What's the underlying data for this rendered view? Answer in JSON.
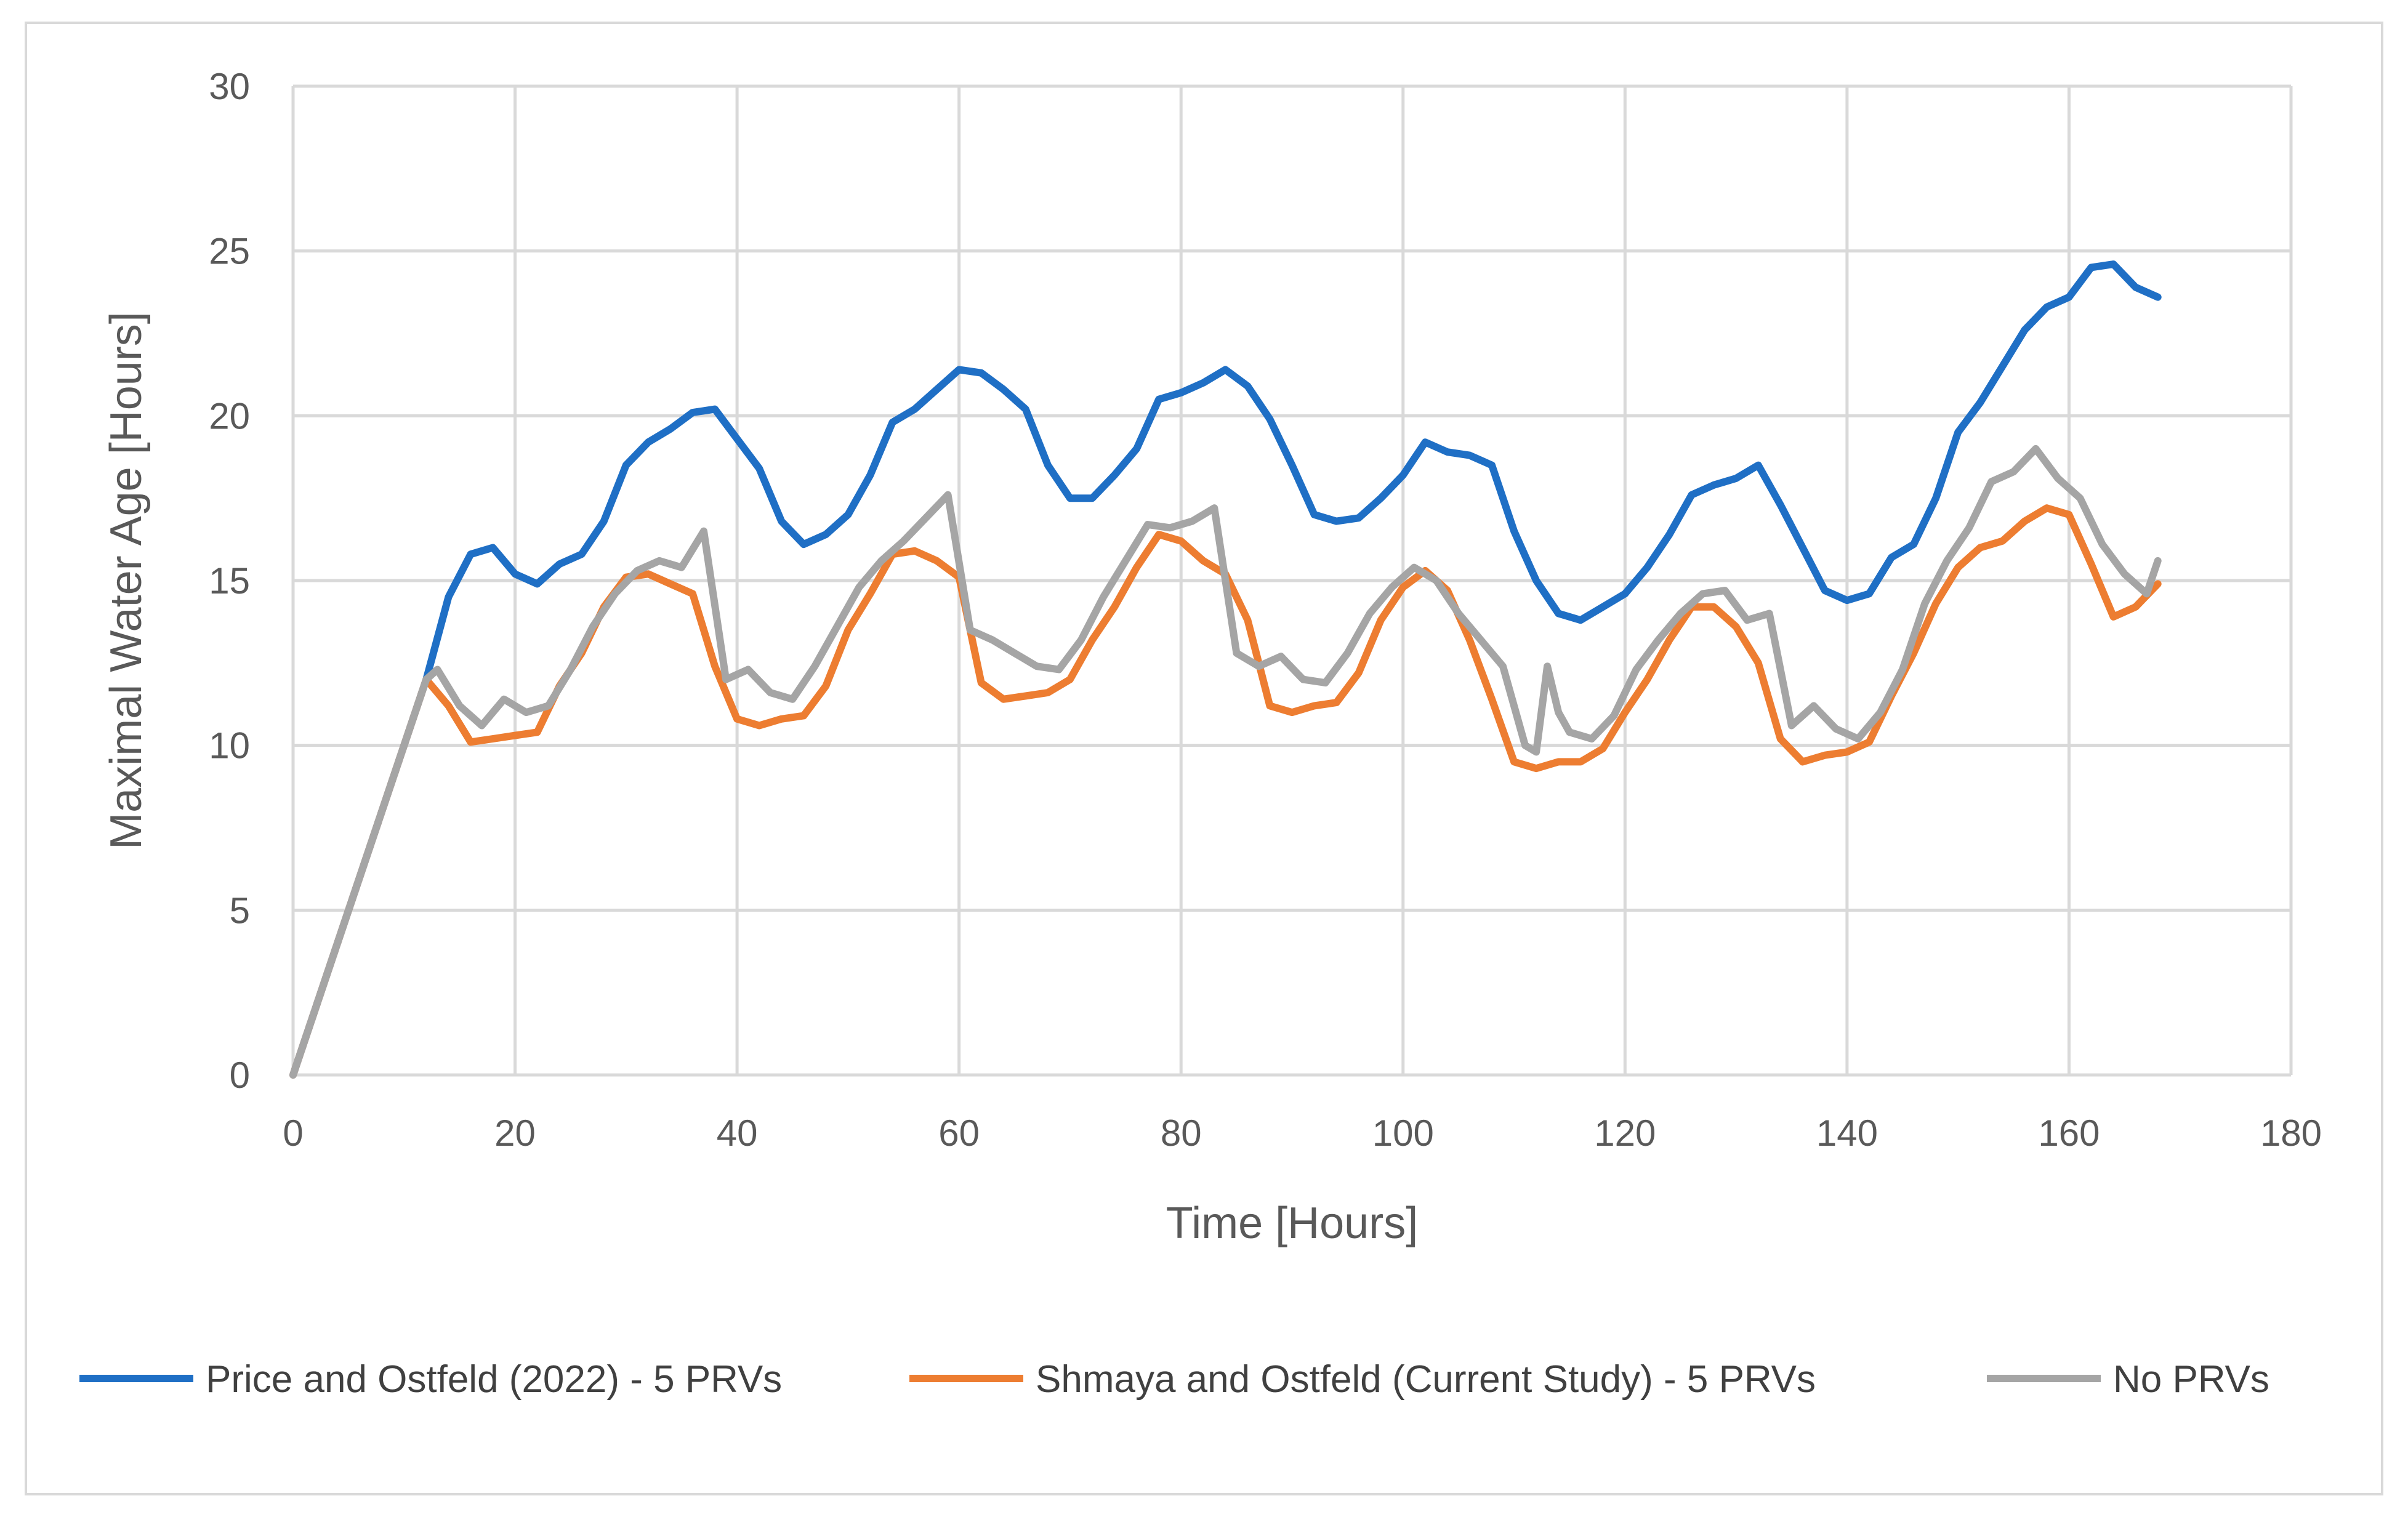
{
  "chart_data": {
    "type": "line",
    "title": "",
    "xlabel": "Time [Hours]",
    "ylabel": "Maximal Water Age [Hours]",
    "xlim": [
      0,
      180
    ],
    "ylim": [
      0,
      30
    ],
    "xticks": [
      0,
      20,
      40,
      60,
      80,
      100,
      120,
      140,
      160,
      180
    ],
    "yticks": [
      0,
      5,
      10,
      15,
      20,
      25,
      30
    ],
    "grid": true,
    "legend_position": "bottom",
    "series": [
      {
        "name": "Price and Ostfeld (2022) - 5 PRVs",
        "color": "#1f6fc5",
        "x": [
          0,
          12,
          14,
          16,
          18,
          20,
          22,
          24,
          26,
          28,
          30,
          32,
          34,
          36,
          38,
          40,
          42,
          44,
          46,
          48,
          50,
          52,
          54,
          56,
          58,
          60,
          62,
          64,
          66,
          68,
          70,
          72,
          74,
          76,
          78,
          80,
          82,
          84,
          86,
          88,
          90,
          92,
          94,
          96,
          98,
          100,
          102,
          104,
          106,
          108,
          110,
          112,
          114,
          116,
          118,
          120,
          122,
          124,
          126,
          128,
          130,
          132,
          134,
          136,
          138,
          140,
          142,
          144,
          146,
          148,
          150,
          152,
          154,
          156,
          158,
          160,
          162,
          164,
          166,
          168
        ],
        "y": [
          0,
          12,
          14.5,
          15.8,
          16,
          15.2,
          14.9,
          15.5,
          15.8,
          16.8,
          18.5,
          19.2,
          19.6,
          20.1,
          20.2,
          19.3,
          18.4,
          16.8,
          16.1,
          16.4,
          17,
          18.2,
          19.8,
          20.2,
          20.8,
          21.4,
          21.3,
          20.8,
          20.2,
          18.5,
          17.5,
          17.5,
          18.2,
          19,
          20.5,
          20.7,
          21,
          21.4,
          20.9,
          19.9,
          18.5,
          17,
          16.8,
          16.9,
          17.5,
          18.2,
          19.2,
          18.9,
          18.8,
          18.5,
          16.5,
          15,
          14,
          13.8,
          14.2,
          14.6,
          15.4,
          16.4,
          17.6,
          17.9,
          18.1,
          18.5,
          17.3,
          16,
          14.7,
          14.4,
          14.6,
          15.7,
          16.1,
          17.5,
          19.5,
          20.4,
          21.5,
          22.6,
          23.3,
          23.6,
          24.5,
          24.6,
          23.9,
          23.6
        ]
      },
      {
        "name": "Shmaya and Ostfeld (Current Study) - 5 PRVs",
        "color": "#ed7d31",
        "x": [
          0,
          12,
          14,
          16,
          18,
          20,
          22,
          24,
          26,
          28,
          30,
          32,
          34,
          36,
          38,
          40,
          42,
          44,
          46,
          48,
          50,
          52,
          54,
          56,
          58,
          60,
          62,
          64,
          66,
          68,
          70,
          72,
          74,
          76,
          78,
          80,
          82,
          84,
          86,
          88,
          90,
          92,
          94,
          96,
          98,
          100,
          102,
          104,
          106,
          108,
          110,
          112,
          114,
          116,
          118,
          120,
          122,
          124,
          126,
          128,
          130,
          132,
          134,
          136,
          138,
          140,
          142,
          144,
          146,
          148,
          150,
          152,
          154,
          156,
          158,
          160,
          162,
          164,
          166,
          168
        ],
        "y": [
          0,
          12,
          11.2,
          10.1,
          10.2,
          10.3,
          10.4,
          11.8,
          12.8,
          14.2,
          15.1,
          15.2,
          14.9,
          14.6,
          12.4,
          10.8,
          10.6,
          10.8,
          10.9,
          11.8,
          13.5,
          14.6,
          15.8,
          15.9,
          15.6,
          15.1,
          11.9,
          11.4,
          11.5,
          11.6,
          12,
          13.2,
          14.2,
          15.4,
          16.4,
          16.2,
          15.6,
          15.2,
          13.8,
          11.2,
          11,
          11.2,
          11.3,
          12.2,
          13.8,
          14.8,
          15.3,
          14.7,
          13.2,
          11.4,
          9.5,
          9.3,
          9.5,
          9.5,
          9.9,
          11,
          12,
          13.2,
          14.2,
          14.2,
          13.6,
          12.5,
          10.2,
          9.5,
          9.7,
          9.8,
          10.1,
          11.5,
          12.8,
          14.3,
          15.4,
          16,
          16.2,
          16.8,
          17.2,
          17,
          15.5,
          13.9,
          14.2,
          14.9
        ]
      },
      {
        "name": "No PRVs",
        "color": "#a5a5a5",
        "x": [
          0,
          12,
          13,
          15,
          17,
          19,
          21,
          23,
          25,
          27,
          29,
          31,
          33,
          35,
          37,
          39,
          41,
          43,
          45,
          47,
          49,
          51,
          53,
          55,
          57,
          59,
          61,
          63,
          65,
          67,
          69,
          71,
          73,
          75,
          77,
          79,
          81,
          83,
          85,
          87,
          89,
          91,
          93,
          95,
          97,
          99,
          101,
          103,
          105,
          107,
          109,
          111,
          112,
          113,
          114,
          115,
          117,
          119,
          121,
          123,
          125,
          127,
          129,
          131,
          133,
          135,
          137,
          139,
          141,
          143,
          145,
          147,
          149,
          151,
          153,
          155,
          157,
          159,
          161,
          163,
          165,
          167,
          168
        ],
        "y": [
          0,
          12,
          12.3,
          11.2,
          10.6,
          11.4,
          11,
          11.2,
          12.3,
          13.6,
          14.6,
          15.3,
          15.6,
          15.4,
          16.5,
          12,
          12.3,
          11.6,
          11.4,
          12.4,
          13.6,
          14.8,
          15.6,
          16.2,
          16.9,
          17.6,
          13.5,
          13.2,
          12.8,
          12.4,
          12.3,
          13.2,
          14.5,
          15.6,
          16.7,
          16.6,
          16.8,
          17.2,
          12.8,
          12.4,
          12.7,
          12,
          11.9,
          12.8,
          14,
          14.8,
          15.4,
          15,
          14,
          13.2,
          12.4,
          10,
          9.8,
          12.4,
          11,
          10.4,
          10.2,
          10.9,
          12.3,
          13.2,
          14,
          14.6,
          14.7,
          13.8,
          14,
          10.6,
          11.2,
          10.5,
          10.2,
          11,
          12.3,
          14.3,
          15.6,
          16.6,
          18,
          18.3,
          19,
          18.1,
          17.5,
          16.1,
          15.2,
          14.6,
          15.6
        ]
      }
    ]
  }
}
